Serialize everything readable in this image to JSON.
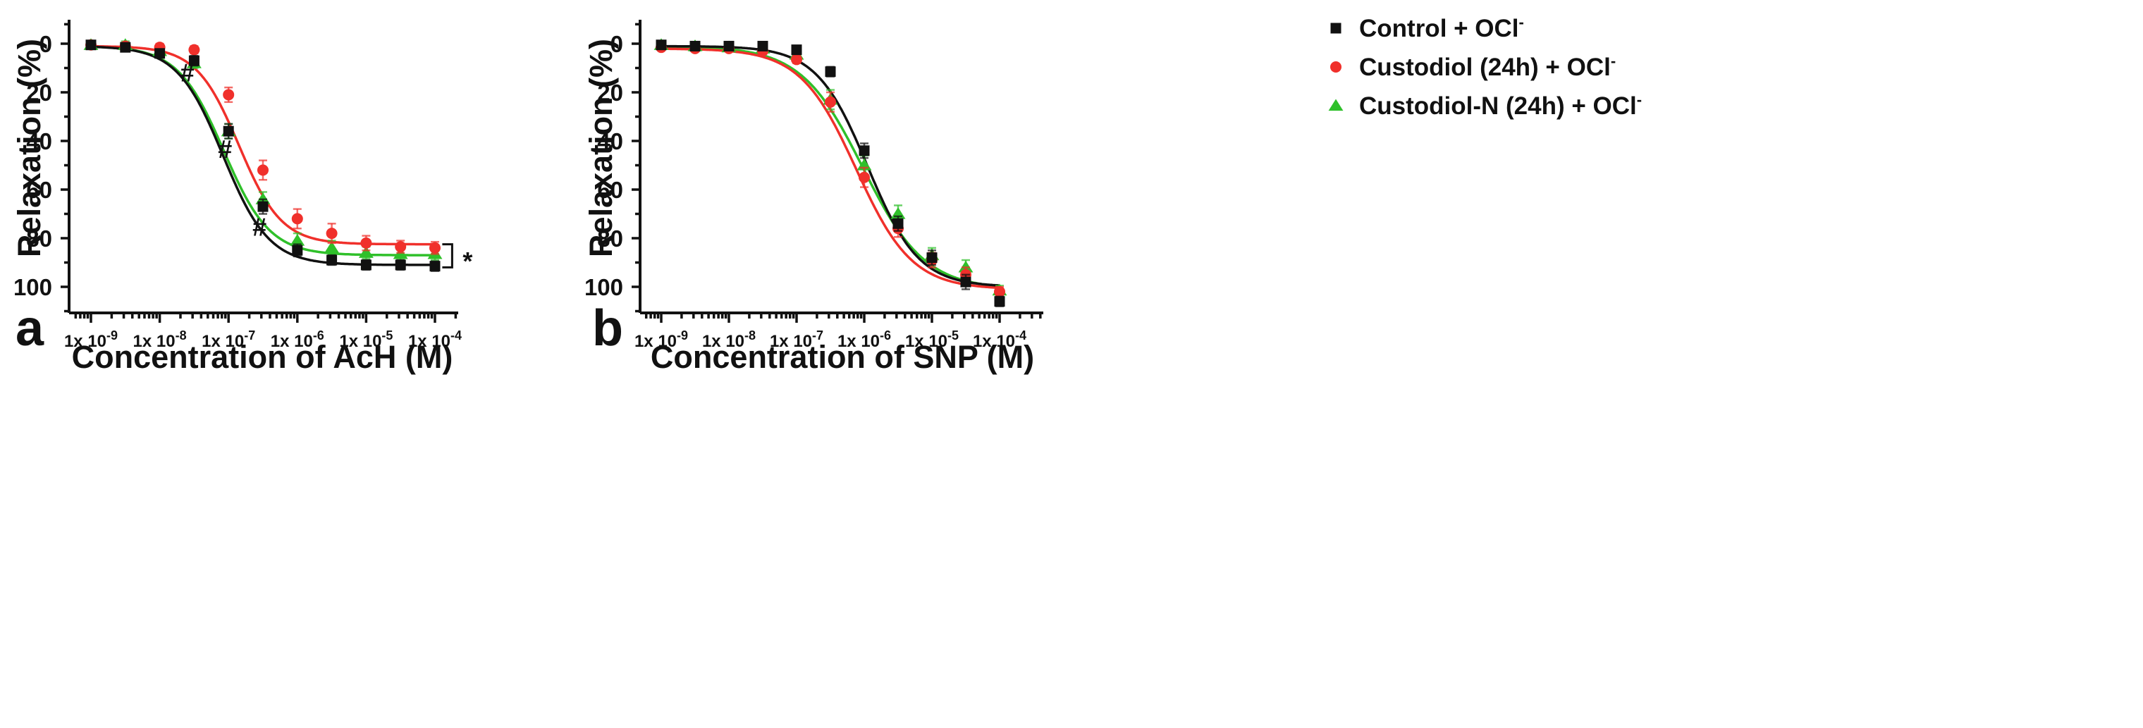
{
  "colors": {
    "control": "#111111",
    "custodiol": "#f0302b",
    "custodiol_n": "#2fc02a"
  },
  "legend": [
    {
      "label": "Control + OCl",
      "sup": "-",
      "color": "#111111",
      "marker": "square"
    },
    {
      "label": "Custodiol (24h) + OCl",
      "sup": "-",
      "color": "#f0302b",
      "marker": "circle"
    },
    {
      "label": "Custodiol-N (24h) + OCl",
      "sup": "-",
      "color": "#2fc02a",
      "marker": "triangle"
    }
  ],
  "chart_data": [
    {
      "panel": "a",
      "type": "line",
      "title": "",
      "xlabel": "Concentration of AcH (M)",
      "ylabel": "Relaxation (%)",
      "xscale": "log",
      "xlim": [
        -9.3,
        -3.6
      ],
      "ylim": [
        -10,
        110
      ],
      "y_inverted": true,
      "yticks": [
        0,
        20,
        40,
        60,
        80,
        100
      ],
      "ytick_labels": [
        "0",
        "20",
        "40",
        "60",
        "80",
        "100"
      ],
      "xticks": [
        -9,
        -8,
        -7,
        -6,
        -5,
        -4
      ],
      "xtick_labels": [
        {
          "base": "1x 10",
          "exp": "-9"
        },
        {
          "base": "1x 10",
          "exp": "-8"
        },
        {
          "base": "1x 10",
          "exp": "-7"
        },
        {
          "base": "1x 10",
          "exp": "-6"
        },
        {
          "base": "1x 10",
          "exp": "-5"
        },
        {
          "base": "1x 10",
          "exp": "-4"
        }
      ],
      "series": [
        {
          "name": "Control + OCl-",
          "marker": "square",
          "x": [
            -9,
            -8.5,
            -8,
            -7.5,
            -7,
            -6.5,
            -6,
            -5.5,
            -5,
            -4.5,
            -4
          ],
          "y": [
            0.5,
            1.5,
            4,
            7,
            36,
            67,
            85,
            89,
            91,
            91,
            91.5
          ],
          "err": [
            1.5,
            1.5,
            1.5,
            2,
            3,
            3,
            2.5,
            2,
            2,
            2,
            2
          ],
          "fit": {
            "bottom": 1,
            "top": 91,
            "logEC50": -7.08,
            "hill": 1.3
          }
        },
        {
          "name": "Custodiol (24h) + OCl-",
          "marker": "circle",
          "x": [
            -9,
            -8.5,
            -8,
            -7.5,
            -7,
            -6.5,
            -6,
            -5.5,
            -5,
            -4.5,
            -4
          ],
          "y": [
            0.5,
            1,
            1.5,
            2.5,
            21,
            52,
            72,
            78,
            82,
            83.5,
            84
          ],
          "err": [
            1.5,
            1.5,
            1.5,
            1.5,
            3,
            4,
            4,
            4,
            3,
            2.5,
            2.5
          ],
          "fit": {
            "bottom": 1,
            "top": 82.5,
            "logEC50": -6.85,
            "hill": 1.4
          }
        },
        {
          "name": "Custodiol-N (24h) + OCl-",
          "marker": "triangle",
          "x": [
            -9,
            -8.5,
            -8,
            -7.5,
            -7,
            -6.5,
            -6,
            -5.5,
            -5,
            -4.5,
            -4
          ],
          "y": [
            0.5,
            0.5,
            3,
            8,
            36,
            64,
            81,
            84,
            86,
            86.5,
            86.5
          ],
          "err": [
            1.5,
            1.5,
            1.5,
            2,
            3,
            3,
            3,
            3,
            2.5,
            2.5,
            2.5
          ],
          "fit": {
            "bottom": 1,
            "top": 87,
            "logEC50": -7.07,
            "hill": 1.3
          }
        }
      ],
      "annotations": [
        {
          "text": "#",
          "x": -7.6,
          "y": 15.5
        },
        {
          "text": "#",
          "x": -7.05,
          "y": 47
        },
        {
          "text": "#",
          "x": -6.55,
          "y": 79
        }
      ],
      "bracket": {
        "text": "*",
        "x": -3.75,
        "y_from": 82.5,
        "y_to": 92
      }
    },
    {
      "panel": "b",
      "type": "line",
      "title": "",
      "xlabel": "Concentration of SNP (M)",
      "ylabel": "Relaxation (%)",
      "xscale": "log",
      "xlim": [
        -9.3,
        -3.5
      ],
      "ylim": [
        -10,
        110
      ],
      "y_inverted": true,
      "yticks": [
        0,
        20,
        40,
        60,
        80,
        100
      ],
      "ytick_labels": [
        "0",
        "20",
        "40",
        "60",
        "80",
        "100"
      ],
      "xticks": [
        -9,
        -8,
        -7,
        -6,
        -5,
        -4
      ],
      "xtick_labels": [
        {
          "base": "1x 10",
          "exp": "-9"
        },
        {
          "base": "1x 10",
          "exp": "-8"
        },
        {
          "base": "1x 10",
          "exp": "-7"
        },
        {
          "base": "1x 10",
          "exp": "-6"
        },
        {
          "base": "1x 10",
          "exp": "-5"
        },
        {
          "base": "1x 10",
          "exp": "-4"
        }
      ],
      "series": [
        {
          "name": "Control + OCl-",
          "marker": "square",
          "x": [
            -9,
            -8.5,
            -8,
            -7.5,
            -7,
            -6.5,
            -6,
            -5.5,
            -5,
            -4.5,
            -4
          ],
          "y": [
            0.5,
            1,
            1,
            1,
            2.5,
            11.5,
            44,
            74,
            88,
            98,
            106
          ],
          "err": [
            1,
            1,
            1,
            1,
            1.5,
            2,
            3,
            3,
            3,
            3,
            2
          ],
          "fit": {
            "bottom": 1,
            "top": 100,
            "logEC50": -5.95,
            "hill": 1.15
          }
        },
        {
          "name": "Custodiol (24h) + OCl-",
          "marker": "circle",
          "x": [
            -9,
            -8.5,
            -8,
            -7.5,
            -7,
            -6.5,
            -6,
            -5.5,
            -5,
            -4.5,
            -4
          ],
          "y": [
            1.5,
            2,
            2,
            3,
            6.5,
            24,
            55,
            76,
            89,
            95,
            102
          ],
          "err": [
            1,
            1,
            1,
            1,
            1.5,
            4,
            4,
            3.5,
            3,
            3,
            2
          ],
          "fit": {
            "bottom": 2,
            "top": 101,
            "logEC50": -6.12,
            "hill": 1.05
          }
        },
        {
          "name": "Custodiol-N (24h) + OCl-",
          "marker": "triangle",
          "x": [
            -9,
            -8.5,
            -8,
            -7.5,
            -7,
            -6.5,
            -6,
            -5.5,
            -5,
            -4.5,
            -4
          ],
          "y": [
            0.5,
            1,
            1.5,
            2,
            4.5,
            23,
            50,
            70,
            87,
            92,
            101.5
          ],
          "err": [
            1,
            1,
            1,
            1,
            1.5,
            4,
            4,
            3.5,
            3,
            3,
            2
          ],
          "fit": {
            "bottom": 1,
            "top": 101,
            "logEC50": -6.02,
            "hill": 0.95
          }
        }
      ]
    }
  ]
}
